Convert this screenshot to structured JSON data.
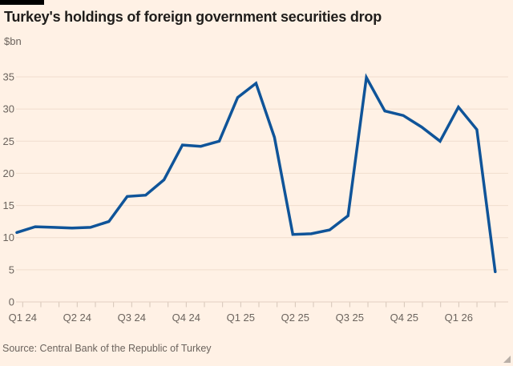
{
  "header": {
    "title": "Turkey's holdings of foreign government securities drop",
    "unit_label": "$bn"
  },
  "source": "Source: Central Bank of the Republic of Turkey",
  "colors": {
    "background": "#FFF1E5",
    "line": "#0F5499",
    "title_text": "#1F1D1B",
    "muted_text": "#6B635D",
    "gridline": "#F0DDCE",
    "zero_line": "#E3D0C1",
    "tick": "#D5C5B8",
    "brand_bar": "#000000",
    "resize_grip": "#B9AFA7"
  },
  "chart_data": {
    "type": "line",
    "title": "Turkey's holdings of foreign government securities drop",
    "xlabel": "",
    "ylabel": "$bn",
    "ylim": [
      0,
      35
    ],
    "yticks": [
      0,
      5,
      10,
      15,
      20,
      25,
      30,
      35
    ],
    "grid": true,
    "legend_position": "none",
    "x_quarter_labels": [
      "Q1 24",
      "Q2 24",
      "Q3 24",
      "Q4 24",
      "Q1 25",
      "Q2 25",
      "Q3 25",
      "Q4 25",
      "Q1 26"
    ],
    "x": [
      "Jan 24",
      "Feb 24",
      "Mar 24",
      "Apr 24",
      "May 24",
      "Jun 24",
      "Jul 24",
      "Aug 24",
      "Sep 24",
      "Oct 24",
      "Nov 24",
      "Dec 24",
      "Jan 25",
      "Feb 25",
      "Mar 25",
      "Apr 25",
      "May 25",
      "Jun 25",
      "Jul 25",
      "Aug 25",
      "Sep 25",
      "Oct 25",
      "Nov 25",
      "Dec 25",
      "Jan 26",
      "Feb 26",
      "Mar 26"
    ],
    "series": [
      {
        "name": "Turkey's holdings of foreign government securities ($bn)",
        "values": [
          10.8,
          11.7,
          11.6,
          11.5,
          11.6,
          12.5,
          16.4,
          16.6,
          19.0,
          24.4,
          24.2,
          25.0,
          31.8,
          34.0,
          25.6,
          10.5,
          10.6,
          11.2,
          13.4,
          34.9,
          29.7,
          29.0,
          27.2,
          25.0,
          30.3,
          26.8,
          4.7
        ]
      }
    ]
  }
}
